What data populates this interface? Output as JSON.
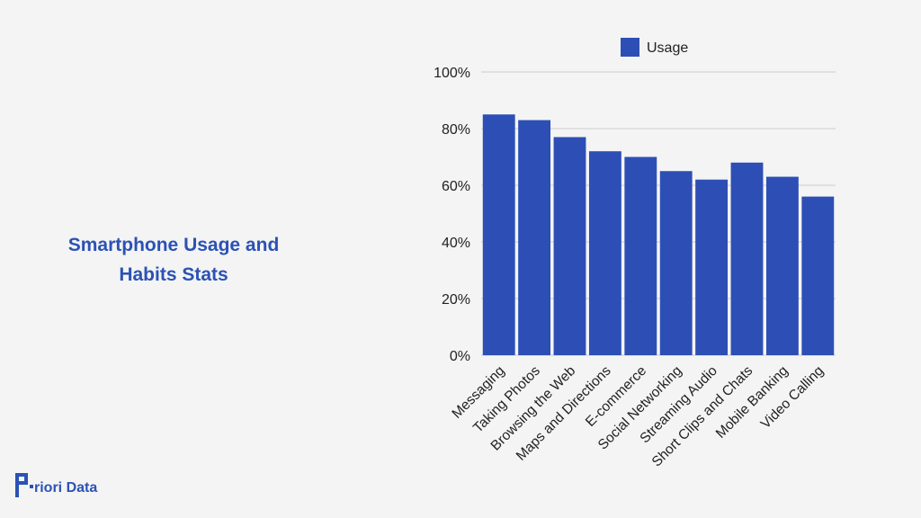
{
  "title": {
    "line1": "Smartphone Usage and",
    "line2": "Habits Stats"
  },
  "brand": {
    "name": "riori Data",
    "color": "#2b52b4"
  },
  "chart_data": {
    "type": "bar",
    "title": "",
    "xlabel": "",
    "ylabel": "",
    "categories": [
      "Messaging",
      "Taking Photos",
      "Browsing the Web",
      "Maps and Directions",
      "E-commerce",
      "Social Networking",
      "Streaming Audio",
      "Short Clips and Chats",
      "Mobile Banking",
      "Video Calling"
    ],
    "series": [
      {
        "name": "Usage",
        "values": [
          85,
          83,
          77,
          72,
          70,
          65,
          62,
          68,
          63,
          56
        ],
        "color": "#2d4fb5"
      }
    ],
    "ylim": [
      0,
      100
    ],
    "yticks": [
      0,
      20,
      40,
      60,
      80,
      100
    ],
    "ytick_labels": [
      "0%",
      "20%",
      "40%",
      "60%",
      "80%",
      "100%"
    ],
    "grid": true,
    "legend_position": "top"
  }
}
